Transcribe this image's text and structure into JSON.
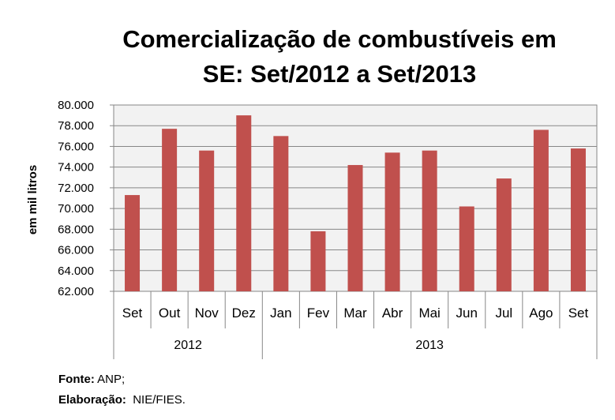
{
  "chart_data": {
    "type": "bar",
    "title_line1": "Comercialização de combustíveis em",
    "title_line2": "SE: Set/2012 a Set/2013",
    "ylabel": "em mil litros",
    "xlabel": "",
    "categories": [
      "Set",
      "Out",
      "Nov",
      "Dez",
      "Jan",
      "Fev",
      "Mar",
      "Abr",
      "Mai",
      "Jun",
      "Jul",
      "Ago",
      "Set"
    ],
    "groups": [
      {
        "label": "2012",
        "count": 4
      },
      {
        "label": "2013",
        "count": 9
      }
    ],
    "values": [
      71300,
      77700,
      75600,
      79000,
      77000,
      67800,
      74200,
      75400,
      75600,
      70200,
      72900,
      77600,
      75800
    ],
    "ylim": [
      62000,
      80000
    ],
    "yticks": [
      62000,
      64000,
      66000,
      68000,
      70000,
      72000,
      74000,
      76000,
      78000,
      80000
    ],
    "ytick_labels": [
      "62.000",
      "64.000",
      "66.000",
      "68.000",
      "70.000",
      "72.000",
      "74.000",
      "76.000",
      "78.000",
      "80.000"
    ],
    "grid": true,
    "bar_color": "#c0504d",
    "plot_background": "#f2f2f2"
  },
  "source": {
    "fonte_label": "Fonte:",
    "fonte_value": " ANP;",
    "elab_label": "Elaboração:",
    "elab_value": "  NIE/FIES."
  }
}
